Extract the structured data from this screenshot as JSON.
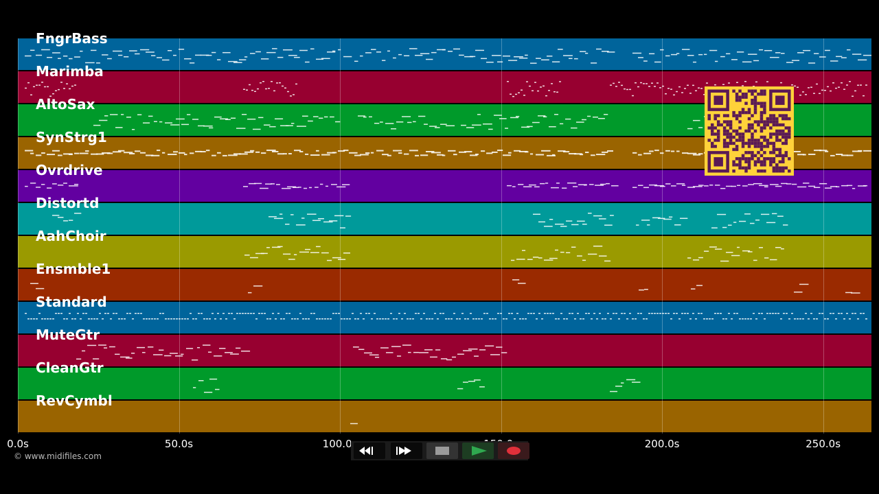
{
  "tracks": [
    {
      "name": "FngrBass",
      "color": "#00649b"
    },
    {
      "name": "Marimba",
      "color": "#970030"
    },
    {
      "name": "AltoSax",
      "color": "#009a2a"
    },
    {
      "name": "SynStrg1",
      "color": "#9a6400"
    },
    {
      "name": "Ovrdrive",
      "color": "#6200a0"
    },
    {
      "name": "Distortd",
      "color": "#009a9a"
    },
    {
      "name": "AahChoir",
      "color": "#9a9a00"
    },
    {
      "name": "Ensmble1",
      "color": "#9a2a00"
    },
    {
      "name": "Standard",
      "color": "#00649b"
    },
    {
      "name": "MuteGtr",
      "color": "#970030"
    },
    {
      "name": "CleanGtr",
      "color": "#009a2a"
    },
    {
      "name": "RevCymbl",
      "color": "#9a6400"
    }
  ],
  "timeline": {
    "ticks": [
      "0.0s",
      "50.0s",
      "100.0s",
      "150.0s",
      "200.0s",
      "250.0s"
    ],
    "tick_values": [
      0,
      50,
      100,
      150,
      200,
      250
    ],
    "max_seconds": 265
  },
  "footer": {
    "copyright": "© www.midifiles.com"
  },
  "transport": {
    "icons": [
      "rewind-icon",
      "fast-forward-icon",
      "stop-icon",
      "play-icon",
      "record-icon"
    ],
    "play_color": "#2fa84f",
    "record_color": "#e0303a"
  },
  "qr_color": "#ffd23a"
}
